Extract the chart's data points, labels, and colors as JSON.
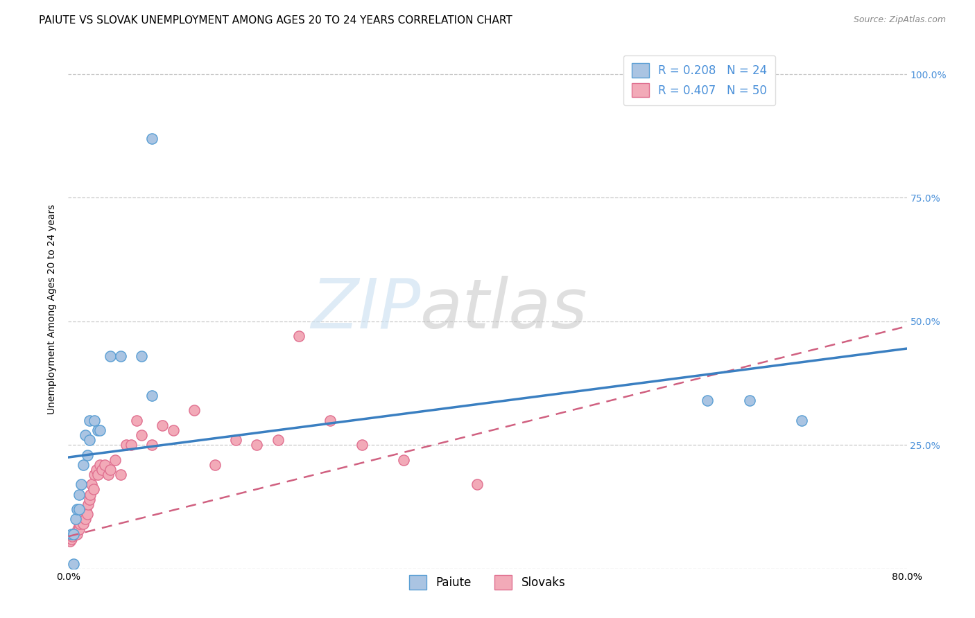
{
  "title": "PAIUTE VS SLOVAK UNEMPLOYMENT AMONG AGES 20 TO 24 YEARS CORRELATION CHART",
  "source": "Source: ZipAtlas.com",
  "ylabel": "Unemployment Among Ages 20 to 24 years",
  "xlim": [
    0.0,
    0.8
  ],
  "ylim": [
    0.0,
    1.05
  ],
  "xticks": [
    0.0,
    0.1,
    0.2,
    0.3,
    0.4,
    0.5,
    0.6,
    0.7,
    0.8
  ],
  "xticklabels": [
    "0.0%",
    "",
    "",
    "",
    "",
    "",
    "",
    "",
    "80.0%"
  ],
  "ytick_positions": [
    0.0,
    0.25,
    0.5,
    0.75,
    1.0
  ],
  "yticklabels_right": [
    "",
    "25.0%",
    "50.0%",
    "75.0%",
    "100.0%"
  ],
  "paiute_color": "#aac4e2",
  "slovak_color": "#f2aab8",
  "paiute_edge_color": "#5a9fd4",
  "slovak_edge_color": "#e07090",
  "paiute_line_color": "#3a7fc1",
  "slovak_line_color": "#d06080",
  "tick_color": "#4a90d9",
  "paiute_R": 0.208,
  "paiute_N": 24,
  "slovak_R": 0.407,
  "slovak_N": 50,
  "paiute_scatter_x": [
    0.003,
    0.005,
    0.007,
    0.008,
    0.01,
    0.01,
    0.012,
    0.014,
    0.016,
    0.018,
    0.02,
    0.02,
    0.025,
    0.028,
    0.03,
    0.04,
    0.05,
    0.07,
    0.08,
    0.08,
    0.61,
    0.65,
    0.7,
    0.005
  ],
  "paiute_scatter_y": [
    0.07,
    0.07,
    0.1,
    0.12,
    0.15,
    0.12,
    0.17,
    0.21,
    0.27,
    0.23,
    0.3,
    0.26,
    0.3,
    0.28,
    0.28,
    0.43,
    0.43,
    0.43,
    0.35,
    0.87,
    0.34,
    0.34,
    0.3,
    0.01
  ],
  "slovak_scatter_x": [
    0.002,
    0.003,
    0.004,
    0.005,
    0.006,
    0.007,
    0.008,
    0.009,
    0.01,
    0.01,
    0.011,
    0.012,
    0.013,
    0.014,
    0.015,
    0.016,
    0.017,
    0.018,
    0.019,
    0.02,
    0.021,
    0.022,
    0.024,
    0.025,
    0.027,
    0.028,
    0.03,
    0.032,
    0.035,
    0.038,
    0.04,
    0.045,
    0.05,
    0.055,
    0.06,
    0.065,
    0.07,
    0.08,
    0.09,
    0.1,
    0.12,
    0.14,
    0.16,
    0.18,
    0.2,
    0.22,
    0.25,
    0.28,
    0.32,
    0.39
  ],
  "slovak_scatter_y": [
    0.055,
    0.06,
    0.065,
    0.07,
    0.07,
    0.07,
    0.07,
    0.08,
    0.09,
    0.08,
    0.09,
    0.1,
    0.1,
    0.09,
    0.11,
    0.1,
    0.12,
    0.11,
    0.13,
    0.14,
    0.15,
    0.17,
    0.16,
    0.19,
    0.2,
    0.19,
    0.21,
    0.2,
    0.21,
    0.19,
    0.2,
    0.22,
    0.19,
    0.25,
    0.25,
    0.3,
    0.27,
    0.25,
    0.29,
    0.28,
    0.32,
    0.21,
    0.26,
    0.25,
    0.26,
    0.47,
    0.3,
    0.25,
    0.22,
    0.17
  ],
  "paiute_trend_x": [
    0.0,
    0.8
  ],
  "paiute_trend_y": [
    0.225,
    0.445
  ],
  "slovak_trend_x": [
    0.0,
    0.8
  ],
  "slovak_trend_y": [
    0.065,
    0.49
  ],
  "watermark_zip": "ZIP",
  "watermark_atlas": "atlas",
  "background_color": "#ffffff",
  "grid_color": "#c8c8c8",
  "title_fontsize": 11,
  "axis_label_fontsize": 10,
  "tick_fontsize": 10,
  "legend_fontsize": 12
}
